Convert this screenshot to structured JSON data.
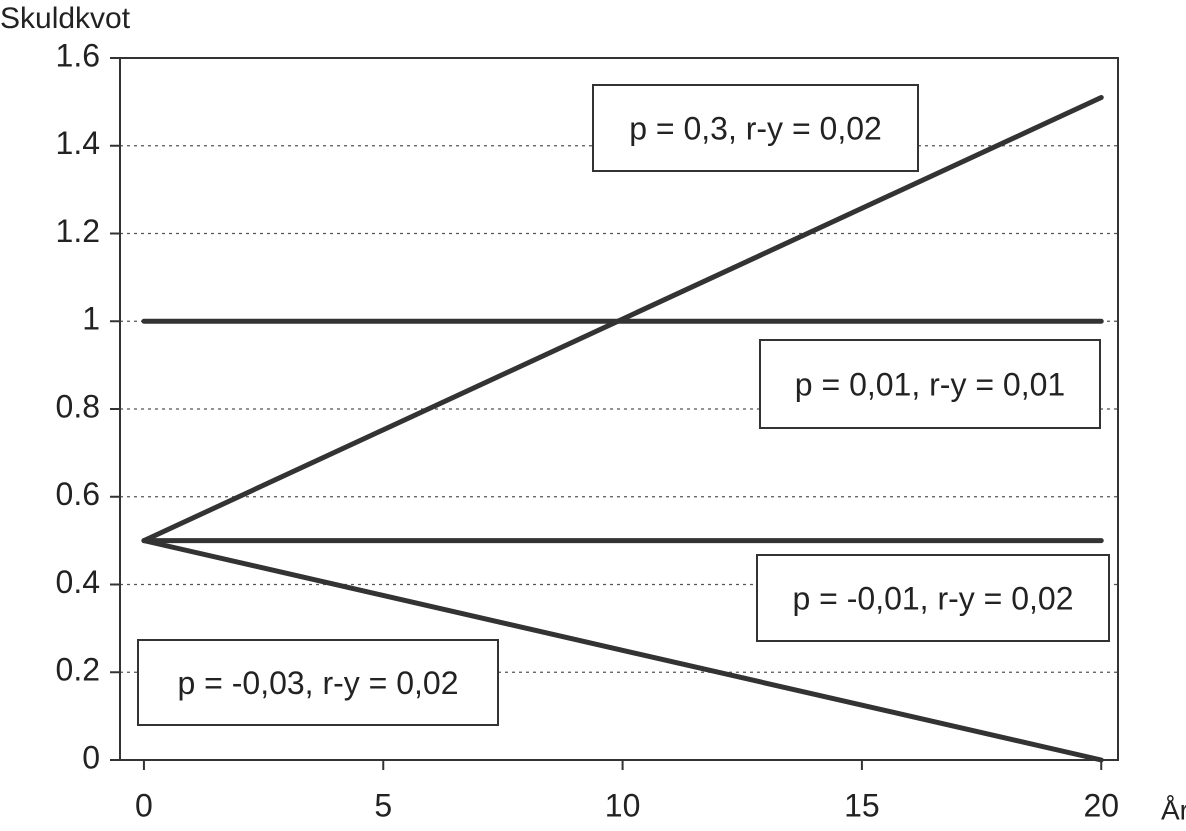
{
  "chart_data": {
    "type": "line",
    "ylabel": "Skuldkvot",
    "xlabel": "År",
    "x": [
      0,
      20
    ],
    "series": [
      {
        "name": "p = 0,3, r-y = 0,02",
        "color": "#333333",
        "values": [
          0.5,
          1.51
        ]
      },
      {
        "name": "p = 0,01, r-y = 0,01",
        "color": "#333333",
        "values": [
          1,
          1
        ]
      },
      {
        "name": "p = -0,01, r-y = 0,02",
        "color": "#333333",
        "values": [
          0.5,
          0.5
        ]
      },
      {
        "name": "p = -0,03, r-y = 0,02",
        "color": "#333333",
        "values": [
          0.5,
          0
        ]
      }
    ],
    "xlim": [
      -0.5,
      20.35
    ],
    "xticks": [
      0,
      5,
      10,
      15,
      20
    ],
    "ylim": [
      0,
      1.6
    ],
    "yticks": [
      0,
      0.2,
      0.4,
      0.6,
      0.8,
      1,
      1.2,
      1.4,
      1.6
    ],
    "grid": true
  }
}
